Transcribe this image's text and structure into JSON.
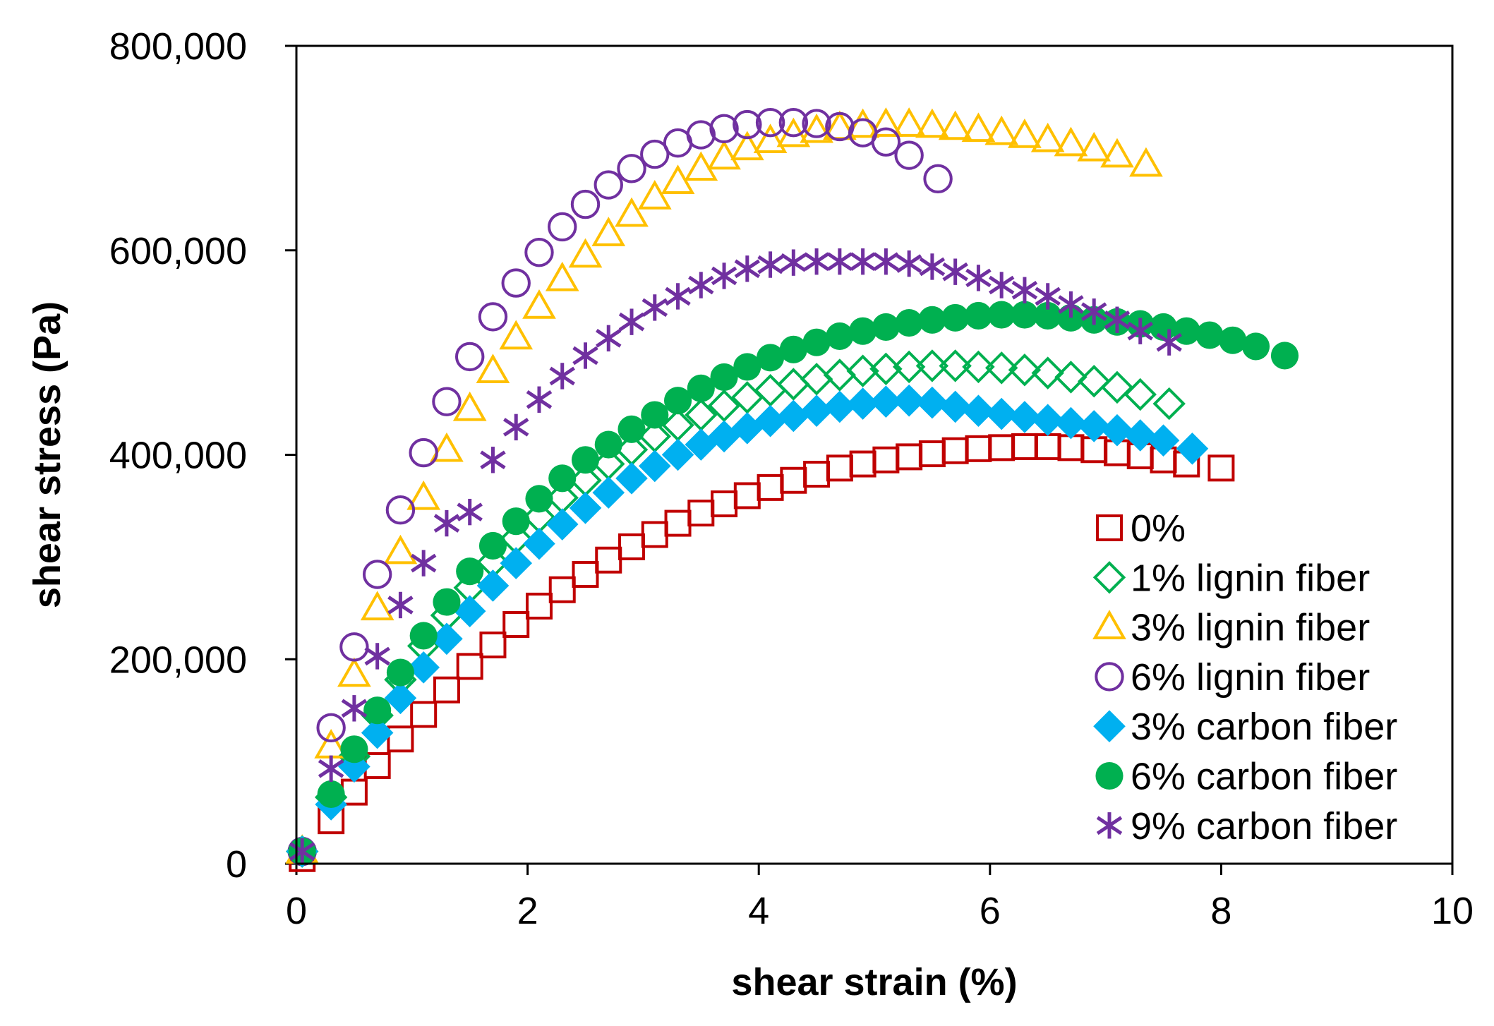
{
  "chart_data": {
    "type": "scatter",
    "title": "",
    "xlabel": "shear strain (%)",
    "ylabel": "shear stress (Pa)",
    "xlim": [
      0,
      10
    ],
    "ylim": [
      0,
      800000
    ],
    "x_ticks": [
      0,
      2,
      4,
      6,
      8,
      10
    ],
    "y_ticks": [
      0,
      200000,
      400000,
      600000,
      800000
    ],
    "x_tick_labels": [
      "0",
      "2",
      "4",
      "6",
      "8",
      "10"
    ],
    "y_tick_labels": [
      "0",
      "200,000",
      "400,000",
      "600,000",
      "800,000"
    ],
    "grid": false,
    "legend_position": "bottom-right",
    "series": [
      {
        "name": "0%",
        "marker": "square-open",
        "color": "#C00000",
        "x": [
          0.05,
          0.3,
          0.5,
          0.7,
          0.9,
          1.1,
          1.3,
          1.5,
          1.7,
          1.9,
          2.1,
          2.3,
          2.5,
          2.7,
          2.9,
          3.1,
          3.3,
          3.5,
          3.7,
          3.9,
          4.1,
          4.3,
          4.5,
          4.7,
          4.9,
          5.1,
          5.3,
          5.5,
          5.7,
          5.9,
          6.1,
          6.3,
          6.5,
          6.7,
          6.9,
          7.1,
          7.3,
          7.5,
          7.7,
          8.0
        ],
        "y": [
          5000,
          42000,
          70000,
          96000,
          122000,
          146000,
          170000,
          193000,
          214000,
          234000,
          252000,
          268000,
          283000,
          297000,
          310000,
          322000,
          333000,
          343000,
          352000,
          360000,
          368000,
          375000,
          381000,
          387000,
          391000,
          395000,
          398000,
          401000,
          404000,
          406000,
          407000,
          408000,
          408000,
          407000,
          405000,
          402000,
          399000,
          395000,
          391000,
          387000
        ]
      },
      {
        "name": "1% lignin fiber",
        "marker": "diamond-open",
        "color": "#00B050",
        "x": [
          0.05,
          0.3,
          0.5,
          0.7,
          0.9,
          1.1,
          1.3,
          1.5,
          1.7,
          1.9,
          2.1,
          2.3,
          2.5,
          2.7,
          2.9,
          3.1,
          3.3,
          3.5,
          3.7,
          3.9,
          4.1,
          4.3,
          4.5,
          4.7,
          4.9,
          5.1,
          5.3,
          5.5,
          5.7,
          5.9,
          6.1,
          6.3,
          6.5,
          6.7,
          6.9,
          7.1,
          7.3,
          7.55
        ],
        "y": [
          12000,
          65000,
          105000,
          145000,
          180000,
          213000,
          243000,
          270000,
          295000,
          318000,
          339000,
          358000,
          375000,
          391000,
          405000,
          418000,
          429000,
          439000,
          448000,
          456000,
          463000,
          469000,
          474000,
          478000,
          482000,
          484000,
          486000,
          487000,
          487000,
          486000,
          485000,
          483000,
          480000,
          476000,
          472000,
          466000,
          459000,
          450000
        ]
      },
      {
        "name": "3% lignin fiber",
        "marker": "triangle-open",
        "color": "#FFC000",
        "x": [
          0.05,
          0.3,
          0.5,
          0.7,
          0.9,
          1.1,
          1.3,
          1.5,
          1.7,
          1.9,
          2.1,
          2.3,
          2.5,
          2.7,
          2.9,
          3.1,
          3.3,
          3.5,
          3.7,
          3.9,
          4.1,
          4.3,
          4.5,
          4.7,
          4.9,
          5.1,
          5.3,
          5.5,
          5.7,
          5.9,
          6.1,
          6.3,
          6.5,
          6.7,
          6.9,
          7.1,
          7.35
        ],
        "y": [
          12000,
          115000,
          185000,
          250000,
          305000,
          358000,
          405000,
          445000,
          482000,
          515000,
          545000,
          572000,
          595000,
          616000,
          635000,
          652000,
          667000,
          680000,
          691000,
          700000,
          707000,
          713000,
          717000,
          720000,
          722000,
          723000,
          723000,
          722000,
          720000,
          718000,
          715000,
          712000,
          708000,
          704000,
          699000,
          693000,
          684000
        ]
      },
      {
        "name": "6% lignin fiber",
        "marker": "circle-open",
        "color": "#7030A0",
        "x": [
          0.05,
          0.3,
          0.5,
          0.7,
          0.9,
          1.1,
          1.3,
          1.5,
          1.7,
          1.9,
          2.1,
          2.3,
          2.5,
          2.7,
          2.9,
          3.1,
          3.3,
          3.5,
          3.7,
          3.9,
          4.1,
          4.3,
          4.5,
          4.7,
          4.9,
          5.1,
          5.3,
          5.55
        ],
        "y": [
          12000,
          133000,
          212000,
          283000,
          346000,
          402000,
          452000,
          496000,
          535000,
          568000,
          598000,
          623000,
          645000,
          664000,
          680000,
          694000,
          705000,
          713000,
          719000,
          723000,
          725000,
          725000,
          724000,
          721000,
          715000,
          706000,
          693000,
          670000
        ]
      },
      {
        "name": "3% carbon fiber",
        "marker": "diamond-filled",
        "color": "#00B0F0",
        "x": [
          0.05,
          0.3,
          0.5,
          0.7,
          0.9,
          1.1,
          1.3,
          1.5,
          1.7,
          1.9,
          2.1,
          2.3,
          2.5,
          2.7,
          2.9,
          3.1,
          3.3,
          3.5,
          3.7,
          3.9,
          4.1,
          4.3,
          4.5,
          4.7,
          4.9,
          5.1,
          5.3,
          5.5,
          5.7,
          5.9,
          6.1,
          6.3,
          6.5,
          6.7,
          6.9,
          7.1,
          7.3,
          7.5,
          7.75
        ],
        "y": [
          12000,
          58000,
          95000,
          128000,
          162000,
          192000,
          220000,
          247000,
          272000,
          294000,
          313000,
          332000,
          348000,
          363000,
          377000,
          389000,
          400000,
          410000,
          418000,
          426000,
          433000,
          438000,
          443000,
          447000,
          450000,
          452000,
          453000,
          451000,
          447000,
          443000,
          440000,
          437000,
          434000,
          431000,
          428000,
          424000,
          419000,
          414000,
          406000
        ]
      },
      {
        "name": "6% carbon fiber",
        "marker": "circle-filled",
        "color": "#00B050",
        "x": [
          0.05,
          0.3,
          0.5,
          0.7,
          0.9,
          1.1,
          1.3,
          1.5,
          1.7,
          1.9,
          2.1,
          2.3,
          2.5,
          2.7,
          2.9,
          3.1,
          3.3,
          3.5,
          3.7,
          3.9,
          4.1,
          4.3,
          4.5,
          4.7,
          4.9,
          5.1,
          5.3,
          5.5,
          5.7,
          5.9,
          6.1,
          6.3,
          6.5,
          6.7,
          6.9,
          7.1,
          7.3,
          7.5,
          7.7,
          7.9,
          8.1,
          8.3,
          8.55
        ],
        "y": [
          12000,
          68000,
          112000,
          150000,
          187000,
          223000,
          256000,
          286000,
          311000,
          335000,
          357000,
          377000,
          395000,
          410000,
          425000,
          439000,
          453000,
          465000,
          476000,
          486000,
          495000,
          503000,
          510000,
          516000,
          521000,
          525000,
          529000,
          532000,
          534000,
          536000,
          537000,
          537000,
          536000,
          534000,
          532000,
          530000,
          528000,
          525000,
          521000,
          517000,
          512000,
          506000,
          497000
        ]
      },
      {
        "name": "9% carbon fiber",
        "marker": "asterisk",
        "color": "#7030A0",
        "x": [
          0.05,
          0.3,
          0.5,
          0.7,
          0.9,
          1.1,
          1.3,
          1.5,
          1.7,
          1.9,
          2.1,
          2.3,
          2.5,
          2.7,
          2.9,
          3.1,
          3.3,
          3.5,
          3.7,
          3.9,
          4.1,
          4.3,
          4.5,
          4.7,
          4.9,
          5.1,
          5.3,
          5.5,
          5.7,
          5.9,
          6.1,
          6.3,
          6.5,
          6.7,
          6.9,
          7.1,
          7.3,
          7.55
        ],
        "y": [
          12000,
          93000,
          152000,
          203000,
          253000,
          294000,
          333000,
          344000,
          395000,
          427000,
          454000,
          477000,
          497000,
          514000,
          530000,
          544000,
          555000,
          566000,
          575000,
          582000,
          586000,
          588000,
          589000,
          589000,
          589000,
          589000,
          587000,
          584000,
          579000,
          573000,
          566000,
          561000,
          555000,
          547000,
          540000,
          532000,
          521000,
          510000
        ]
      }
    ]
  }
}
